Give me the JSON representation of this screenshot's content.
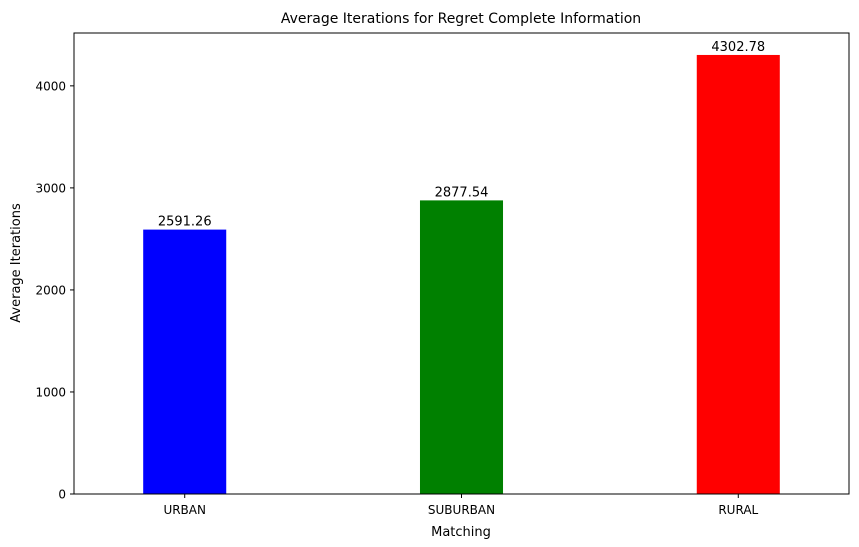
{
  "chart_data": {
    "type": "bar",
    "title": "Average Iterations for Regret Complete Information",
    "xlabel": "Matching",
    "ylabel": "Average Iterations",
    "categories": [
      "URBAN",
      "SUBURBAN",
      "RURAL"
    ],
    "values": [
      2591.26,
      2877.54,
      4302.78
    ],
    "value_labels": [
      "2591.26",
      "2877.54",
      "4302.78"
    ],
    "colors": [
      "#0000ff",
      "#008000",
      "#ff0000"
    ],
    "ylim": [
      0,
      4518
    ],
    "yticks": [
      0,
      1000,
      2000,
      3000,
      4000
    ],
    "ytick_labels": [
      "0",
      "1000",
      "2000",
      "3000",
      "4000"
    ],
    "grid": false,
    "legend": "none"
  }
}
